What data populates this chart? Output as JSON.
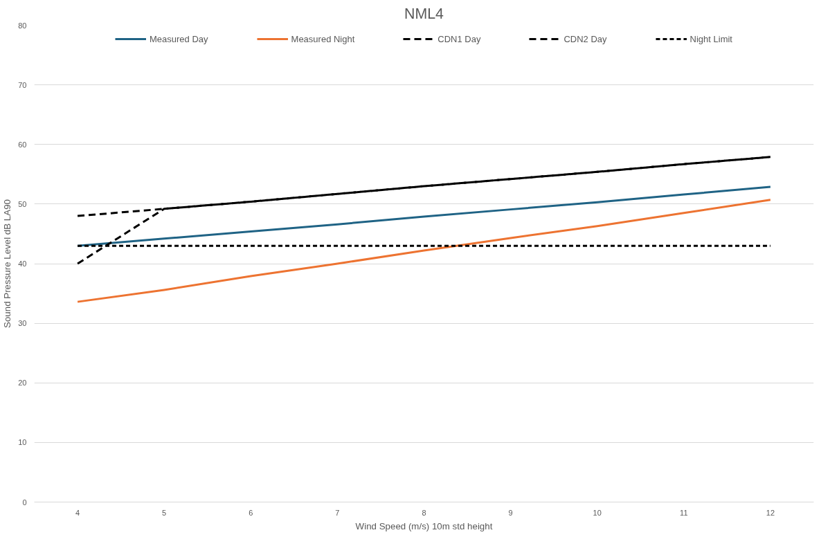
{
  "chart_data": {
    "type": "line",
    "title": "NML4",
    "xlabel": "Wind Speed (m/s) 10m std height",
    "ylabel": "Sound Pressure Level dB LA90",
    "x": [
      4,
      5,
      6,
      7,
      8,
      9,
      10,
      11,
      12
    ],
    "series": [
      {
        "name": "Measured Day",
        "color": "#1f6385",
        "line_style": "solid",
        "values": [
          43,
          44.2,
          45.4,
          46.6,
          47.9,
          49.1,
          50.3,
          51.6,
          52.9
        ]
      },
      {
        "name": "Measured Night",
        "color": "#ed7331",
        "line_style": "solid",
        "values": [
          33.6,
          35.6,
          37.9,
          40,
          42.2,
          44.3,
          46.3,
          48.5,
          50.7
        ]
      },
      {
        "name": "CDN1 Day",
        "color": "#000000",
        "line_style": "dashed",
        "values": [
          48,
          49.2,
          50.4,
          51.7,
          53,
          54.2,
          55.4,
          56.7,
          57.9
        ]
      },
      {
        "name": "CDN2 Day",
        "color": "#000000",
        "line_style": "dashed",
        "values": [
          40,
          49.2,
          50.4,
          51.7,
          53,
          54.2,
          55.4,
          56.7,
          57.9
        ]
      },
      {
        "name": "Night Limit",
        "color": "#000000",
        "line_style": "dotted",
        "values": [
          43,
          43,
          43,
          43,
          43,
          43,
          43,
          43,
          43
        ]
      }
    ],
    "xlim": [
      3.5,
      12.5
    ],
    "xticks": [
      4,
      5,
      6,
      7,
      8,
      9,
      10,
      11,
      12
    ],
    "ylim": [
      0,
      80
    ],
    "yticks": [
      0,
      10,
      20,
      30,
      40,
      50,
      60,
      70,
      80
    ],
    "grid": "y",
    "legend": "top",
    "marker": "none"
  }
}
